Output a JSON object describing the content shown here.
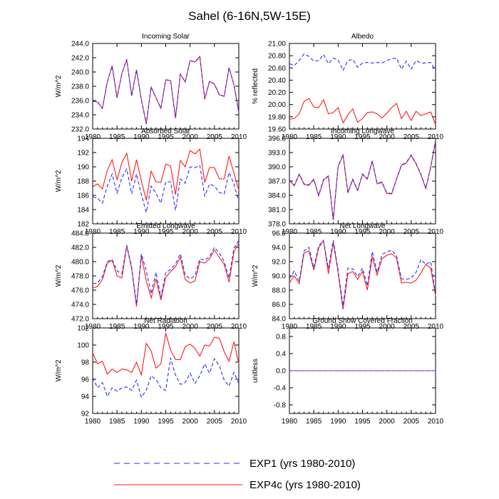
{
  "figure": {
    "title": "Sahel (6-16N,5W-15E)",
    "colors": {
      "exp1": "#2b2bff",
      "exp4c": "#ff1a1a",
      "axis": "#000000",
      "background": "#ffffff"
    },
    "legend": [
      {
        "label": "EXP1 (yrs 1980-2010)",
        "style": "dashed",
        "color": "#2b2bff"
      },
      {
        "label": "EXP4c (yrs 1980-2010)",
        "style": "solid",
        "color": "#ff1a1a"
      }
    ]
  },
  "chart_data": [
    {
      "type": "line",
      "title": "Incoming Solar",
      "xlabel": "",
      "ylabel": "W/m^2",
      "xlim": [
        1980,
        2010
      ],
      "ylim": [
        232,
        244
      ],
      "x_ticks": [
        "1980",
        "1985",
        "1990",
        "1995",
        "2000",
        "2005",
        "2010"
      ],
      "y_ticks": [
        "232.0",
        "234.0",
        "236.0",
        "238.0",
        "240.0",
        "242.0",
        "244.0"
      ],
      "x": [
        1980,
        1981,
        1982,
        1983,
        1984,
        1985,
        1986,
        1987,
        1988,
        1989,
        1990,
        1991,
        1992,
        1993,
        1994,
        1995,
        1996,
        1997,
        1998,
        1999,
        2000,
        2001,
        2002,
        2003,
        2004,
        2005,
        2006,
        2007,
        2008,
        2009,
        2010
      ],
      "series": [
        {
          "name": "EXP1",
          "values": [
            235.9,
            235.8,
            234.9,
            238.6,
            240.8,
            236.4,
            239.8,
            241.8,
            236.6,
            240.3,
            236.1,
            232.7,
            237.9,
            236.4,
            234.9,
            238.9,
            238.8,
            233.5,
            239.7,
            238.6,
            241.6,
            241.4,
            242.1,
            236.2,
            238.7,
            238.3,
            236.8,
            236.6,
            240.6,
            238.2,
            234.3
          ]
        },
        {
          "name": "EXP4c",
          "values": [
            235.9,
            235.8,
            234.9,
            238.6,
            240.9,
            236.4,
            239.8,
            241.7,
            236.7,
            240.3,
            236.1,
            232.8,
            237.9,
            236.4,
            234.9,
            238.9,
            238.8,
            233.6,
            239.7,
            238.6,
            241.6,
            241.4,
            242.2,
            236.2,
            238.7,
            238.3,
            236.8,
            236.6,
            240.6,
            238.2,
            234.4
          ]
        }
      ]
    },
    {
      "type": "line",
      "title": "Albedo",
      "xlabel": "",
      "ylabel": "% reflected",
      "xlim": [
        1980,
        2010
      ],
      "ylim": [
        19.6,
        21.0
      ],
      "x_ticks": [
        "1980",
        "1985",
        "1990",
        "1995",
        "2000",
        "2005",
        "2010"
      ],
      "y_ticks": [
        "19.60",
        "19.80",
        "20.00",
        "20.20",
        "20.40",
        "20.60",
        "20.80",
        "21.00"
      ],
      "x": [
        1980,
        1981,
        1982,
        1983,
        1984,
        1985,
        1986,
        1987,
        1988,
        1989,
        1990,
        1991,
        1992,
        1993,
        1994,
        1995,
        1996,
        1997,
        1998,
        1999,
        2000,
        2001,
        2002,
        2003,
        2004,
        2005,
        2006,
        2007,
        2008,
        2009,
        2010
      ],
      "series": [
        {
          "name": "EXP1",
          "values": [
            20.67,
            20.64,
            20.72,
            20.83,
            20.79,
            20.71,
            20.72,
            20.82,
            20.67,
            20.76,
            20.73,
            20.56,
            20.72,
            20.74,
            20.61,
            20.68,
            20.69,
            20.68,
            20.69,
            20.68,
            20.72,
            20.75,
            20.76,
            20.58,
            20.71,
            20.58,
            20.72,
            20.68,
            20.68,
            20.69,
            20.56
          ]
        },
        {
          "name": "EXP4c",
          "values": [
            19.76,
            19.77,
            19.85,
            20.05,
            20.1,
            19.96,
            19.95,
            20.08,
            19.85,
            19.87,
            19.95,
            19.7,
            19.83,
            19.93,
            19.71,
            19.77,
            19.87,
            19.88,
            19.85,
            19.78,
            19.86,
            19.95,
            20.02,
            19.77,
            19.89,
            19.74,
            19.89,
            19.82,
            19.85,
            19.88,
            19.67
          ]
        }
      ]
    },
    {
      "type": "line",
      "title": "Absorbed Solar",
      "xlabel": "",
      "ylabel": "W/m^2",
      "xlim": [
        1980,
        2010
      ],
      "ylim": [
        182,
        194
      ],
      "x_ticks": [
        "1980",
        "1985",
        "1990",
        "1995",
        "2000",
        "2005",
        "2010"
      ],
      "y_ticks": [
        "182",
        "184",
        "186",
        "188",
        "190",
        "192",
        "194"
      ],
      "x": [
        1980,
        1981,
        1982,
        1983,
        1984,
        1985,
        1986,
        1987,
        1988,
        1989,
        1990,
        1991,
        1992,
        1993,
        1994,
        1995,
        1996,
        1997,
        1998,
        1999,
        2000,
        2001,
        2002,
        2003,
        2004,
        2005,
        2006,
        2007,
        2008,
        2009,
        2010
      ],
      "series": [
        {
          "name": "EXP1",
          "values": [
            185.8,
            185.6,
            184.9,
            187.3,
            189.0,
            186.3,
            188.5,
            189.7,
            186.2,
            189.0,
            186.1,
            183.6,
            187.3,
            186.3,
            184.9,
            187.9,
            187.9,
            183.9,
            188.3,
            187.7,
            190.0,
            189.9,
            190.2,
            185.9,
            187.6,
            187.3,
            186.4,
            186.2,
            189.2,
            187.6,
            185.1
          ]
        },
        {
          "name": "EXP4c",
          "values": [
            187.2,
            187.6,
            186.9,
            189.5,
            191.0,
            188.2,
            190.6,
            191.9,
            188.0,
            191.0,
            188.0,
            185.3,
            189.4,
            187.9,
            187.8,
            190.4,
            190.1,
            186.1,
            190.9,
            190.0,
            192.3,
            191.8,
            192.5,
            187.8,
            189.9,
            189.9,
            188.3,
            188.3,
            191.5,
            189.1,
            186.7
          ]
        }
      ]
    },
    {
      "type": "line",
      "title": "Incoming Longwave",
      "xlabel": "",
      "ylabel": "",
      "xlim": [
        1980,
        2010
      ],
      "ylim": [
        378,
        396
      ],
      "x_ticks": [
        "1980",
        "1985",
        "1990",
        "1995",
        "2000",
        "2005",
        "2010"
      ],
      "y_ticks": [
        "378.0",
        "381.0",
        "384.0",
        "387.0",
        "390.0",
        "393.0",
        "396.0"
      ],
      "x": [
        1980,
        1981,
        1982,
        1983,
        1984,
        1985,
        1986,
        1987,
        1988,
        1989,
        1990,
        1991,
        1992,
        1993,
        1994,
        1995,
        1996,
        1997,
        1998,
        1999,
        2000,
        2001,
        2002,
        2003,
        2004,
        2005,
        2006,
        2007,
        2008,
        2009,
        2010
      ],
      "series": [
        {
          "name": "EXP1",
          "values": [
            387.3,
            386.1,
            388.5,
            386.4,
            386.2,
            387.4,
            384.0,
            387.3,
            388.1,
            378.9,
            390.1,
            392.6,
            384.6,
            387.4,
            385.1,
            388.5,
            387.5,
            391.3,
            386.5,
            386.8,
            384.5,
            384.4,
            387.5,
            390.4,
            390.9,
            392.5,
            390.7,
            388.4,
            385.5,
            390.0,
            395.6
          ]
        },
        {
          "name": "EXP4c",
          "values": [
            387.2,
            386.0,
            388.4,
            386.3,
            386.1,
            387.3,
            383.9,
            387.2,
            388.0,
            378.8,
            390.0,
            392.5,
            384.5,
            387.3,
            385.0,
            388.4,
            387.4,
            391.2,
            386.4,
            386.7,
            384.4,
            384.3,
            387.4,
            390.3,
            390.8,
            392.4,
            390.6,
            388.3,
            385.4,
            389.9,
            395.5
          ]
        }
      ]
    },
    {
      "type": "line",
      "title": "Emitted Longwave",
      "xlabel": "",
      "ylabel": "W/m^2",
      "xlim": [
        1980,
        2010
      ],
      "ylim": [
        472,
        484
      ],
      "x_ticks": [
        "1980",
        "1985",
        "1990",
        "1995",
        "2000",
        "2005",
        "2010"
      ],
      "y_ticks": [
        "472.0",
        "474.0",
        "476.0",
        "478.0",
        "480.0",
        "482.0",
        "484.0"
      ],
      "x": [
        1980,
        1981,
        1982,
        1983,
        1984,
        1985,
        1986,
        1987,
        1988,
        1989,
        1990,
        1991,
        1992,
        1993,
        1994,
        1995,
        1996,
        1997,
        1998,
        1999,
        2000,
        2001,
        2002,
        2003,
        2004,
        2005,
        2006,
        2007,
        2008,
        2009,
        2010
      ],
      "series": [
        {
          "name": "EXP1",
          "values": [
            476.9,
            477.0,
            477.9,
            480.0,
            480.3,
            478.7,
            478.3,
            482.3,
            479.2,
            474.0,
            481.1,
            478.7,
            475.5,
            478.5,
            475.0,
            478.5,
            478.9,
            479.7,
            481.1,
            478.1,
            477.6,
            478.0,
            480.4,
            480.2,
            480.7,
            482.0,
            481.2,
            480.0,
            477.7,
            481.9,
            483.0
          ]
        },
        {
          "name": "EXP4c",
          "values": [
            476.3,
            476.5,
            477.5,
            479.8,
            480.2,
            478.0,
            477.7,
            482.2,
            479.0,
            473.7,
            480.8,
            477.3,
            474.9,
            477.6,
            474.6,
            477.8,
            478.6,
            479.3,
            480.6,
            477.5,
            477.0,
            477.3,
            480.0,
            479.8,
            480.4,
            481.6,
            480.6,
            479.6,
            477.1,
            481.4,
            482.6
          ]
        }
      ]
    },
    {
      "type": "line",
      "title": "Net Longwave",
      "xlabel": "",
      "ylabel": "W/m^2",
      "xlim": [
        1980,
        2010
      ],
      "ylim": [
        84,
        96
      ],
      "x_ticks": [
        "1980",
        "1985",
        "1990",
        "1995",
        "2000",
        "2005",
        "2010"
      ],
      "y_ticks": [
        "84.0",
        "86.0",
        "88.0",
        "90.0",
        "92.0",
        "94.0",
        "96.0"
      ],
      "x": [
        1980,
        1981,
        1982,
        1983,
        1984,
        1985,
        1986,
        1987,
        1988,
        1989,
        1990,
        1991,
        1992,
        1993,
        1994,
        1995,
        1996,
        1997,
        1998,
        1999,
        2000,
        2001,
        2002,
        2003,
        2004,
        2005,
        2006,
        2007,
        2008,
        2009,
        2010
      ],
      "series": [
        {
          "name": "EXP1",
          "values": [
            89.6,
            90.7,
            89.2,
            93.5,
            94.0,
            91.1,
            94.2,
            94.9,
            91.0,
            95.0,
            90.8,
            85.8,
            91.1,
            91.0,
            89.9,
            91.1,
            88.6,
            93.4,
            90.5,
            93.0,
            93.4,
            93.6,
            92.8,
            89.6,
            89.5,
            89.7,
            90.5,
            92.3,
            91.6,
            92.0,
            87.3
          ]
        },
        {
          "name": "EXP4c",
          "values": [
            89.0,
            90.0,
            88.9,
            93.2,
            93.5,
            90.8,
            93.9,
            95.0,
            90.3,
            94.7,
            90.5,
            85.3,
            90.3,
            90.6,
            89.5,
            90.6,
            88.0,
            92.7,
            90.1,
            92.4,
            92.9,
            93.1,
            92.5,
            89.0,
            89.1,
            89.0,
            89.4,
            90.4,
            91.6,
            91.1,
            87.2
          ]
        }
      ]
    },
    {
      "type": "line",
      "title": "Net Radiation",
      "xlabel": "",
      "ylabel": "W/m^2",
      "xlim": [
        1980,
        2010
      ],
      "ylim": [
        92,
        102
      ],
      "x_ticks": [
        "1980",
        "1985",
        "1990",
        "1995",
        "2000",
        "2005",
        "2010"
      ],
      "y_ticks": [
        "92",
        "94",
        "96",
        "98",
        "100",
        "102"
      ],
      "x": [
        1980,
        1981,
        1982,
        1983,
        1984,
        1985,
        1986,
        1987,
        1988,
        1989,
        1990,
        1991,
        1992,
        1993,
        1994,
        1995,
        1996,
        1997,
        1998,
        1999,
        2000,
        2001,
        2002,
        2003,
        2004,
        2005,
        2006,
        2007,
        2008,
        2009,
        2010
      ],
      "series": [
        {
          "name": "EXP1",
          "values": [
            96.2,
            95.0,
            95.6,
            94.0,
            95.0,
            94.6,
            95.0,
            95.1,
            94.7,
            95.9,
            93.9,
            94.7,
            96.4,
            96.0,
            95.0,
            94.7,
            98.5,
            96.5,
            95.4,
            95.6,
            96.7,
            95.5,
            96.4,
            97.8,
            96.7,
            98.4,
            97.6,
            95.9,
            95.2,
            96.8,
            95.5
          ]
        },
        {
          "name": "EXP4c",
          "values": [
            99.1,
            97.8,
            98.1,
            96.6,
            97.2,
            96.8,
            97.2,
            97.1,
            96.8,
            98.0,
            96.5,
            100.2,
            99.3,
            97.3,
            97.8,
            101.4,
            99.4,
            98.3,
            98.3,
            99.8,
            100.1,
            99.6,
            98.7,
            100.0,
            99.9,
            100.9,
            100.8,
            99.2,
            98.1,
            100.4,
            97.8
          ]
        }
      ]
    },
    {
      "type": "line",
      "title": "Ground Snow Covered Fraction",
      "xlabel": "",
      "ylabel": "unitless",
      "xlim": [
        1980,
        2010
      ],
      "ylim": [
        -1,
        1
      ],
      "x_ticks": [
        "1980",
        "1985",
        "1990",
        "1995",
        "2000",
        "2005",
        "2010"
      ],
      "y_ticks": [
        "-0.8",
        "-0.4",
        "0.0",
        "0.4",
        "0.8"
      ],
      "y_tick_values": [
        -0.8,
        -0.4,
        0.0,
        0.4,
        0.8
      ],
      "x": [
        1980,
        2010
      ],
      "series": [
        {
          "name": "EXP1",
          "values": [
            0,
            0
          ]
        },
        {
          "name": "EXP4c",
          "values": [
            0,
            0
          ]
        }
      ]
    }
  ]
}
